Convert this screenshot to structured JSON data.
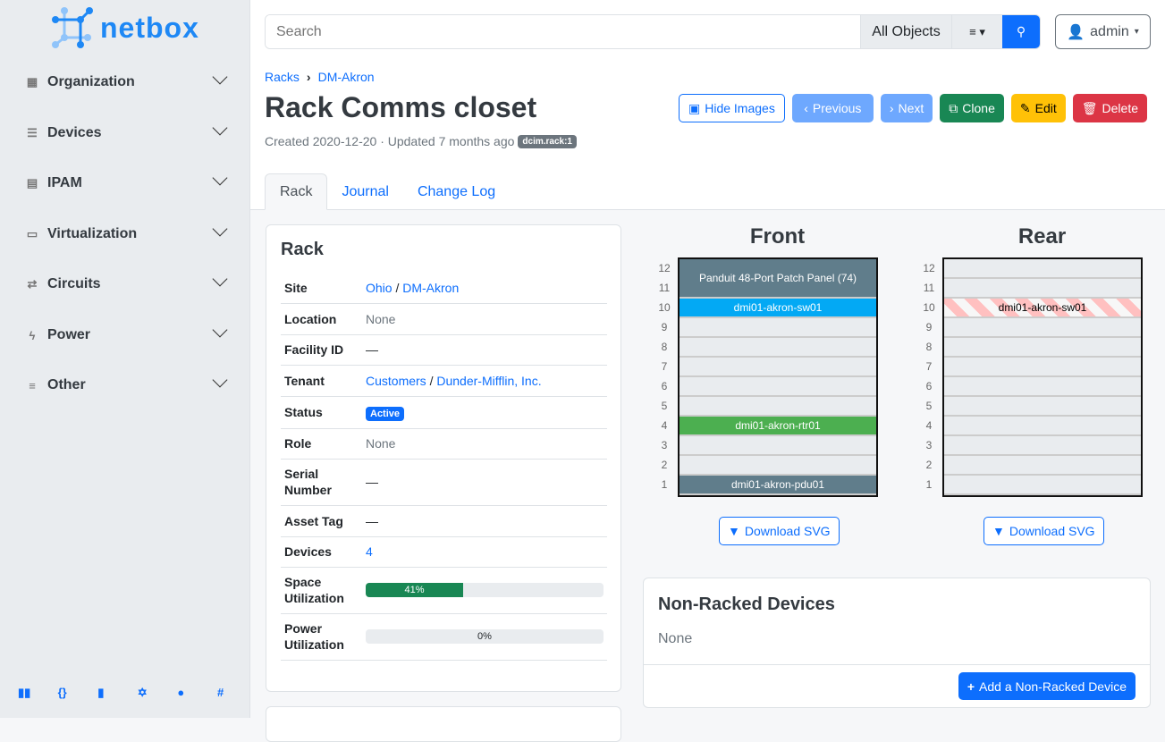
{
  "brand": {
    "name": "netbox",
    "color": "#1e88f5"
  },
  "sidebar": {
    "items": [
      {
        "label": "Organization",
        "icon": "building-icon"
      },
      {
        "label": "Devices",
        "icon": "server-icon"
      },
      {
        "label": "IPAM",
        "icon": "ip-icon"
      },
      {
        "label": "Virtualization",
        "icon": "monitor-icon"
      },
      {
        "label": "Circuits",
        "icon": "circuit-icon"
      },
      {
        "label": "Power",
        "icon": "lightning-icon"
      },
      {
        "label": "Other",
        "icon": "lines-icon"
      }
    ],
    "footer_icons": [
      "book-icon",
      "api-icon",
      "docs-icon",
      "graphql-icon",
      "github-icon",
      "slack-icon"
    ]
  },
  "search": {
    "placeholder": "Search",
    "scope": "All Objects"
  },
  "user": {
    "name": "admin"
  },
  "breadcrumb": [
    "Racks",
    "DM-Akron"
  ],
  "page": {
    "title": "Rack Comms closet",
    "meta": "Created 2020-12-20 · Updated 7 months ago",
    "tag": "dcim.rack:1"
  },
  "actions": {
    "hide_images": "Hide Images",
    "previous": "Previous",
    "next": "Next",
    "clone": "Clone",
    "edit": "Edit",
    "delete": "Delete"
  },
  "tabs": [
    "Rack",
    "Journal",
    "Change Log"
  ],
  "rack_card": {
    "title": "Rack",
    "site": {
      "label": "Site",
      "region": "Ohio",
      "site": "DM-Akron"
    },
    "location": {
      "label": "Location",
      "value": "None"
    },
    "facility": {
      "label": "Facility ID",
      "value": "—"
    },
    "tenant": {
      "label": "Tenant",
      "group": "Customers",
      "tenant": "Dunder-Mifflin, Inc."
    },
    "status": {
      "label": "Status",
      "value": "Active"
    },
    "role": {
      "label": "Role",
      "value": "None"
    },
    "serial": {
      "label": "Serial Number",
      "value": "—"
    },
    "asset": {
      "label": "Asset Tag",
      "value": "—"
    },
    "devices": {
      "label": "Devices",
      "value": "4"
    },
    "space": {
      "label": "Space Utilization",
      "value": "41%",
      "percent": 41
    },
    "power": {
      "label": "Power Utilization",
      "value": "0%",
      "percent": 0
    }
  },
  "elevation": {
    "front_title": "Front",
    "rear_title": "Rear",
    "units": [
      "12",
      "11",
      "10",
      "9",
      "8",
      "7",
      "6",
      "5",
      "4",
      "3",
      "2",
      "1"
    ],
    "front_devices": [
      {
        "name": "Panduit 48-Port Patch Panel (74)",
        "top_u": 12,
        "height_u": 2,
        "color": "#607d8b"
      },
      {
        "name": "dmi01-akron-sw01",
        "top_u": 10,
        "height_u": 1,
        "color": "#03a9f4"
      },
      {
        "name": "dmi01-akron-rtr01",
        "top_u": 4,
        "height_u": 1,
        "color": "#4caf50"
      },
      {
        "name": "dmi01-akron-pdu01",
        "top_u": 1,
        "height_u": 1,
        "color": "#607d8b"
      }
    ],
    "rear_devices": [
      {
        "name": "dmi01-akron-sw01",
        "top_u": 10,
        "height_u": 1,
        "occupied_from_front": true
      }
    ],
    "download": "Download SVG"
  },
  "non_racked": {
    "title": "Non-Racked Devices",
    "value": "None",
    "add": "Add a Non-Racked Device"
  }
}
